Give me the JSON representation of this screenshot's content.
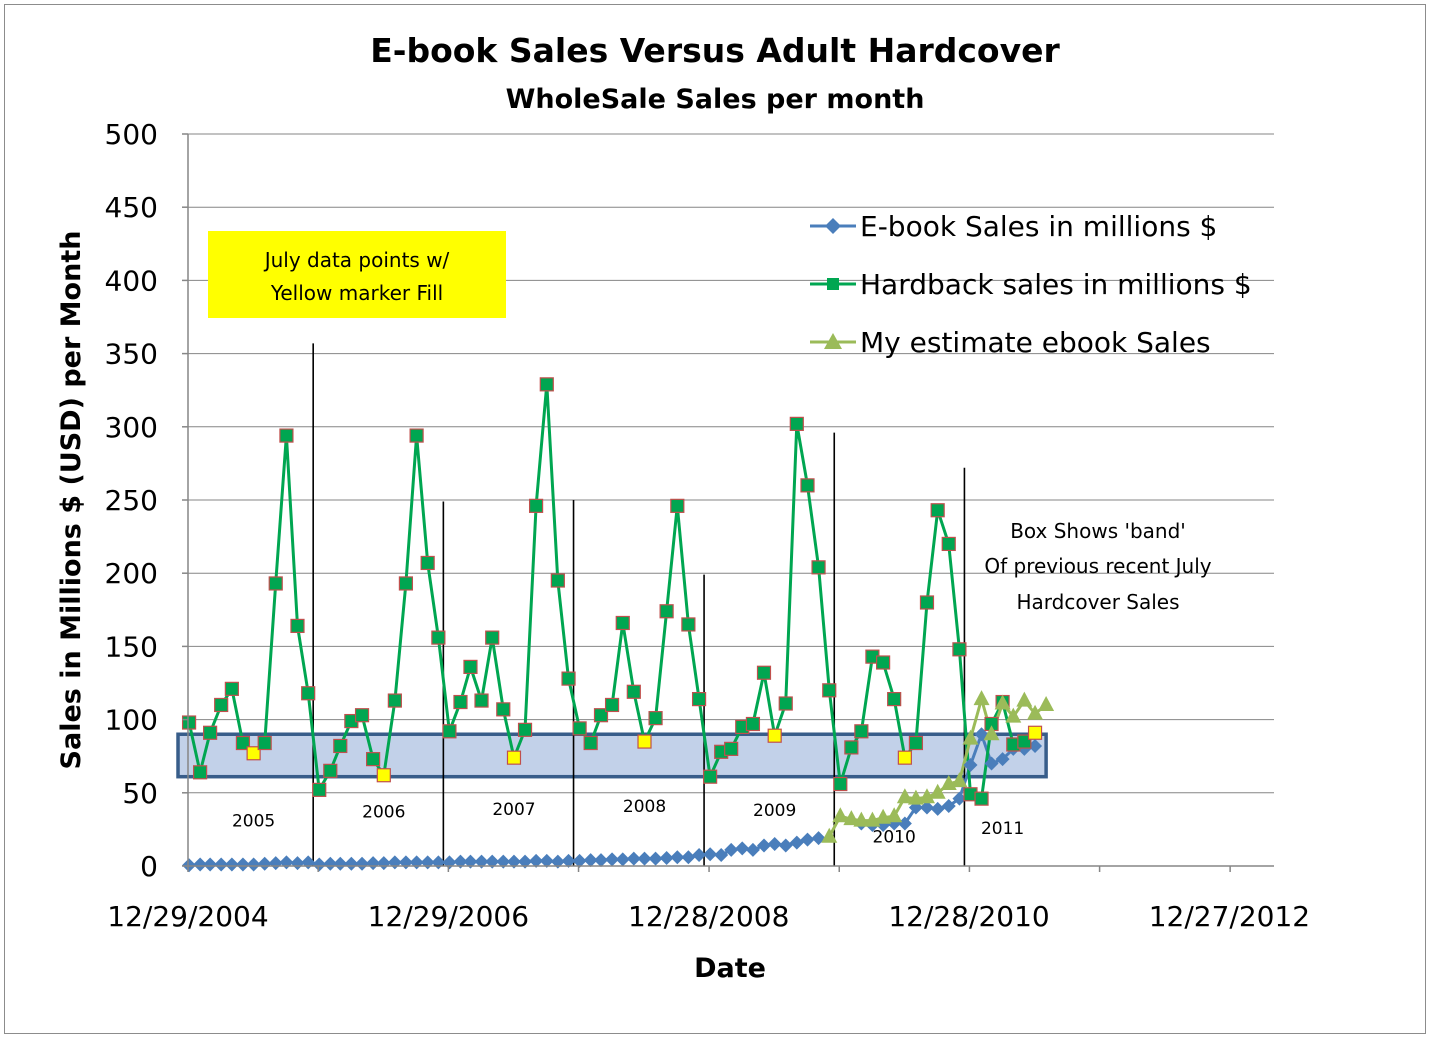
{
  "chart_data": {
    "type": "line",
    "title": "E-book Sales Versus Adult Hardcover",
    "subtitle": "WholeSale Sales per month",
    "xlabel": "Date",
    "ylabel": "Sales in Millions $ (USD) per Month",
    "ylim": [
      0,
      500
    ],
    "y_ticks": [
      "0",
      "50",
      "100",
      "150",
      "200",
      "250",
      "300",
      "350",
      "400",
      "450",
      "500"
    ],
    "x_ticks": [
      "12/29/2004",
      "12/29/2006",
      "12/28/2008",
      "12/28/2010",
      "12/27/2012"
    ],
    "grid": "horizontal",
    "legend_position": "top-right",
    "series": [
      {
        "name": "E-book Sales in millions $",
        "color": "#4a7ebb",
        "marker": "diamond",
        "values": [
          [
            "2005-01",
            0.5
          ],
          [
            "2005-02",
            1
          ],
          [
            "2005-03",
            1
          ],
          [
            "2005-04",
            1
          ],
          [
            "2005-05",
            1
          ],
          [
            "2005-06",
            1
          ],
          [
            "2005-07",
            1
          ],
          [
            "2005-08",
            1.5
          ],
          [
            "2005-09",
            2
          ],
          [
            "2005-10",
            2.5
          ],
          [
            "2005-11",
            2
          ],
          [
            "2005-12",
            2.5
          ],
          [
            "2006-01",
            1
          ],
          [
            "2006-02",
            1.5
          ],
          [
            "2006-03",
            1.5
          ],
          [
            "2006-04",
            1.5
          ],
          [
            "2006-05",
            1.5
          ],
          [
            "2006-06",
            2
          ],
          [
            "2006-07",
            2
          ],
          [
            "2006-08",
            2.5
          ],
          [
            "2006-09",
            2.5
          ],
          [
            "2006-10",
            2.5
          ],
          [
            "2006-11",
            2.5
          ],
          [
            "2006-12",
            2.5
          ],
          [
            "2007-01",
            2.5
          ],
          [
            "2007-02",
            3
          ],
          [
            "2007-03",
            3
          ],
          [
            "2007-04",
            3
          ],
          [
            "2007-05",
            3
          ],
          [
            "2007-06",
            3
          ],
          [
            "2007-07",
            3
          ],
          [
            "2007-08",
            3
          ],
          [
            "2007-09",
            3.5
          ],
          [
            "2007-10",
            3.5
          ],
          [
            "2007-11",
            3
          ],
          [
            "2007-12",
            3.5
          ],
          [
            "2008-01",
            3.5
          ],
          [
            "2008-02",
            4
          ],
          [
            "2008-03",
            4
          ],
          [
            "2008-04",
            4.5
          ],
          [
            "2008-05",
            4.5
          ],
          [
            "2008-06",
            5
          ],
          [
            "2008-07",
            5
          ],
          [
            "2008-08",
            5
          ],
          [
            "2008-09",
            5.5
          ],
          [
            "2008-10",
            6
          ],
          [
            "2008-11",
            6
          ],
          [
            "2008-12",
            7.5
          ],
          [
            "2009-01",
            8
          ],
          [
            "2009-02",
            7.5
          ],
          [
            "2009-03",
            11
          ],
          [
            "2009-04",
            12
          ],
          [
            "2009-05",
            11
          ],
          [
            "2009-06",
            14
          ],
          [
            "2009-07",
            15
          ],
          [
            "2009-08",
            14
          ],
          [
            "2009-09",
            16
          ],
          [
            "2009-10",
            18
          ],
          [
            "2009-11",
            19
          ],
          [
            "2010-03",
            29
          ],
          [
            "2010-04",
            28
          ],
          [
            "2010-05",
            28
          ],
          [
            "2010-06",
            29
          ],
          [
            "2010-07",
            29
          ],
          [
            "2010-08",
            40
          ],
          [
            "2010-09",
            40
          ],
          [
            "2010-10",
            39
          ],
          [
            "2010-11",
            41
          ],
          [
            "2010-12",
            46
          ],
          [
            "2011-01",
            69
          ],
          [
            "2011-02",
            90
          ],
          [
            "2011-03",
            70
          ],
          [
            "2011-04",
            73
          ],
          [
            "2011-05",
            80
          ],
          [
            "2011-06",
            80
          ],
          [
            "2011-07",
            82
          ]
        ]
      },
      {
        "name": "Hardback sales in millions $",
        "color": "#00a651",
        "marker": "square",
        "values": [
          [
            "2005-01",
            98
          ],
          [
            "2005-02",
            64
          ],
          [
            "2005-03",
            91
          ],
          [
            "2005-04",
            110
          ],
          [
            "2005-05",
            121
          ],
          [
            "2005-06",
            84
          ],
          [
            "2005-07",
            77
          ],
          [
            "2005-08",
            84
          ],
          [
            "2005-09",
            193
          ],
          [
            "2005-10",
            294
          ],
          [
            "2005-11",
            164
          ],
          [
            "2005-12",
            118
          ],
          [
            "2006-01",
            52
          ],
          [
            "2006-02",
            65
          ],
          [
            "2006-03",
            82
          ],
          [
            "2006-04",
            99
          ],
          [
            "2006-05",
            103
          ],
          [
            "2006-06",
            73
          ],
          [
            "2006-07",
            62
          ],
          [
            "2006-08",
            113
          ],
          [
            "2006-09",
            193
          ],
          [
            "2006-10",
            294
          ],
          [
            "2006-11",
            207
          ],
          [
            "2006-12",
            156
          ],
          [
            "2007-01",
            92
          ],
          [
            "2007-02",
            112
          ],
          [
            "2007-03",
            136
          ],
          [
            "2007-04",
            113
          ],
          [
            "2007-05",
            156
          ],
          [
            "2007-06",
            107
          ],
          [
            "2007-07",
            74
          ],
          [
            "2007-08",
            93
          ],
          [
            "2007-09",
            246
          ],
          [
            "2007-10",
            329
          ],
          [
            "2007-11",
            195
          ],
          [
            "2007-12",
            128
          ],
          [
            "2008-01",
            94
          ],
          [
            "2008-02",
            84
          ],
          [
            "2008-03",
            103
          ],
          [
            "2008-04",
            110
          ],
          [
            "2008-05",
            166
          ],
          [
            "2008-06",
            119
          ],
          [
            "2008-07",
            85
          ],
          [
            "2008-08",
            101
          ],
          [
            "2008-09",
            174
          ],
          [
            "2008-10",
            246
          ],
          [
            "2008-11",
            165
          ],
          [
            "2008-12",
            114
          ],
          [
            "2009-01",
            61
          ],
          [
            "2009-02",
            78
          ],
          [
            "2009-03",
            80
          ],
          [
            "2009-04",
            95
          ],
          [
            "2009-05",
            97
          ],
          [
            "2009-06",
            132
          ],
          [
            "2009-07",
            89
          ],
          [
            "2009-08",
            111
          ],
          [
            "2009-09",
            302
          ],
          [
            "2009-10",
            260
          ],
          [
            "2009-11",
            204
          ],
          [
            "2009-12",
            120
          ],
          [
            "2010-01",
            56
          ],
          [
            "2010-02",
            81
          ],
          [
            "2010-03",
            92
          ],
          [
            "2010-04",
            143
          ],
          [
            "2010-05",
            139
          ],
          [
            "2010-06",
            114
          ],
          [
            "2010-07",
            74
          ],
          [
            "2010-08",
            84
          ],
          [
            "2010-09",
            180
          ],
          [
            "2010-10",
            243
          ],
          [
            "2010-11",
            220
          ],
          [
            "2010-12",
            148
          ],
          [
            "2011-01",
            49
          ],
          [
            "2011-02",
            46
          ],
          [
            "2011-03",
            97
          ],
          [
            "2011-04",
            112
          ],
          [
            "2011-05",
            83
          ],
          [
            "2011-06",
            85
          ],
          [
            "2011-07",
            91
          ]
        ]
      },
      {
        "name": "My estimate ebook Sales",
        "color": "#9bbb59",
        "marker": "triangle",
        "values": [
          [
            "2009-12",
            20
          ],
          [
            "2010-01",
            34
          ],
          [
            "2010-02",
            32
          ],
          [
            "2010-03",
            31
          ],
          [
            "2010-04",
            31
          ],
          [
            "2010-05",
            33
          ],
          [
            "2010-06",
            34
          ],
          [
            "2010-07",
            47
          ],
          [
            "2010-08",
            46
          ],
          [
            "2010-09",
            47
          ],
          [
            "2010-10",
            50
          ],
          [
            "2010-11",
            56
          ],
          [
            "2010-12",
            58
          ],
          [
            "2011-01",
            87
          ],
          [
            "2011-02",
            114
          ],
          [
            "2011-03",
            90
          ],
          [
            "2011-04",
            111
          ],
          [
            "2011-05",
            102
          ],
          [
            "2011-06",
            113
          ],
          [
            "2011-07",
            104
          ],
          [
            "2011-08",
            110
          ]
        ]
      }
    ],
    "july_highlight": {
      "series": "Hardback sales in millions $",
      "marker_fill": "#ffff00",
      "months": [
        "2005-07",
        "2006-07",
        "2007-07",
        "2008-07",
        "2009-07",
        "2010-07",
        "2011-07"
      ]
    },
    "band_box": {
      "y_from": 61,
      "y_to": 90,
      "x_from": "2004-12",
      "x_to": "2011-08",
      "fill": "#b7c9e5",
      "stroke": "#385d8a"
    },
    "year_dividers": [
      "2005-12-15",
      "2006-12-15",
      "2007-12-15",
      "2008-12-15",
      "2009-12-15",
      "2010-12-15"
    ],
    "year_divider_tops": [
      357,
      249,
      250,
      199,
      296,
      272
    ],
    "year_labels": [
      {
        "text": "2005",
        "date": "2005-07",
        "y": 27
      },
      {
        "text": "2006",
        "date": "2006-07",
        "y": 33
      },
      {
        "text": "2007",
        "date": "2007-07",
        "y": 35
      },
      {
        "text": "2008",
        "date": "2008-07",
        "y": 37
      },
      {
        "text": "2009",
        "date": "2009-07",
        "y": 34
      },
      {
        "text": "2010",
        "date": "2010-06",
        "y": 16
      },
      {
        "text": "2011",
        "date": "2011-04",
        "y": 22
      }
    ]
  },
  "annotations": {
    "july_note": [
      "July data points w/",
      "Yellow marker Fill"
    ],
    "band_note": [
      "Box Shows 'band'",
      "Of previous recent July",
      "Hardcover Sales"
    ]
  }
}
